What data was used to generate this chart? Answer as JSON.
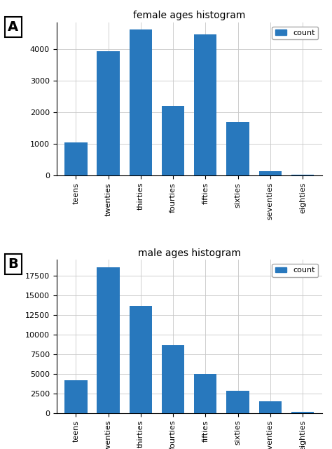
{
  "categories": [
    "teens",
    "twenties",
    "thirties",
    "fourties",
    "fifties",
    "sixties",
    "seventies",
    "eighties"
  ],
  "female_values": [
    1050,
    3950,
    4620,
    2200,
    4480,
    1700,
    150,
    20
  ],
  "male_values": [
    4200,
    18600,
    13700,
    8700,
    5000,
    2800,
    1500,
    200
  ],
  "female_title": "female ages histogram",
  "male_title": "male ages histogram",
  "bar_color": "#2878bd",
  "label_A": "A",
  "label_B": "B",
  "legend_label": "count",
  "background_color": "#ffffff",
  "grid_color": "#c8c8c8",
  "female_ytick_step": 1000,
  "male_ytick_step": 2500
}
